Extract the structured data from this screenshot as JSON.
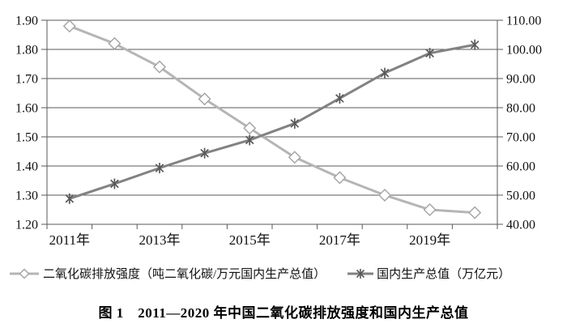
{
  "chart_data": {
    "type": "line",
    "title": "",
    "x_categories": [
      "2011年",
      "2012年",
      "2013年",
      "2014年",
      "2015年",
      "2016年",
      "2017年",
      "2018年",
      "2019年",
      "2020年"
    ],
    "x_axis_shown_labels": [
      "2011年",
      "2013年",
      "2015年",
      "2017年",
      "2019年"
    ],
    "x_axis_shown_label_indices": [
      0,
      2,
      4,
      6,
      8
    ],
    "left_axis": {
      "min": 1.2,
      "max": 1.9,
      "step": 0.1,
      "tick_labels": [
        "1.20",
        "1.30",
        "1.40",
        "1.50",
        "1.60",
        "1.70",
        "1.80",
        "1.90"
      ]
    },
    "right_axis": {
      "min": 40.0,
      "max": 110.0,
      "step": 10.0,
      "tick_labels": [
        "40.00",
        "50.00",
        "60.00",
        "70.00",
        "80.00",
        "90.00",
        "100.00",
        "110.00"
      ]
    },
    "series": [
      {
        "name": "二氧化碳排放强度（吨二氧化碳/万元国内生产总值）",
        "axis": "left",
        "marker": "diamond",
        "line_color": "#b5b5b5",
        "marker_color": "#a3a3a3",
        "marker_fill": "#ffffff",
        "values": [
          1.88,
          1.82,
          1.74,
          1.63,
          1.53,
          1.43,
          1.36,
          1.3,
          1.25,
          1.24
        ]
      },
      {
        "name": "国内生产总值（万亿元）",
        "axis": "right",
        "marker": "asterisk",
        "line_color": "#828282",
        "marker_color": "#595959",
        "marker_fill": "none",
        "values": [
          48.8,
          53.9,
          59.3,
          64.4,
          68.9,
          74.6,
          83.2,
          91.9,
          98.7,
          101.6
        ]
      }
    ],
    "grid": true,
    "grid_color": "#5a5a5a",
    "axis_color": "#5a5a5a",
    "legend_position": "bottom"
  },
  "legend": {
    "items": [
      {
        "label": "二氧化碳排放强度（吨二氧化碳/万元国内生产总值）",
        "marker": "diamond"
      },
      {
        "label": "国内生产总值（万亿元）",
        "marker": "asterisk"
      }
    ]
  },
  "caption": {
    "text": "图 1　2011—2020 年中国二氧化碳排放强度和国内生产总值"
  }
}
